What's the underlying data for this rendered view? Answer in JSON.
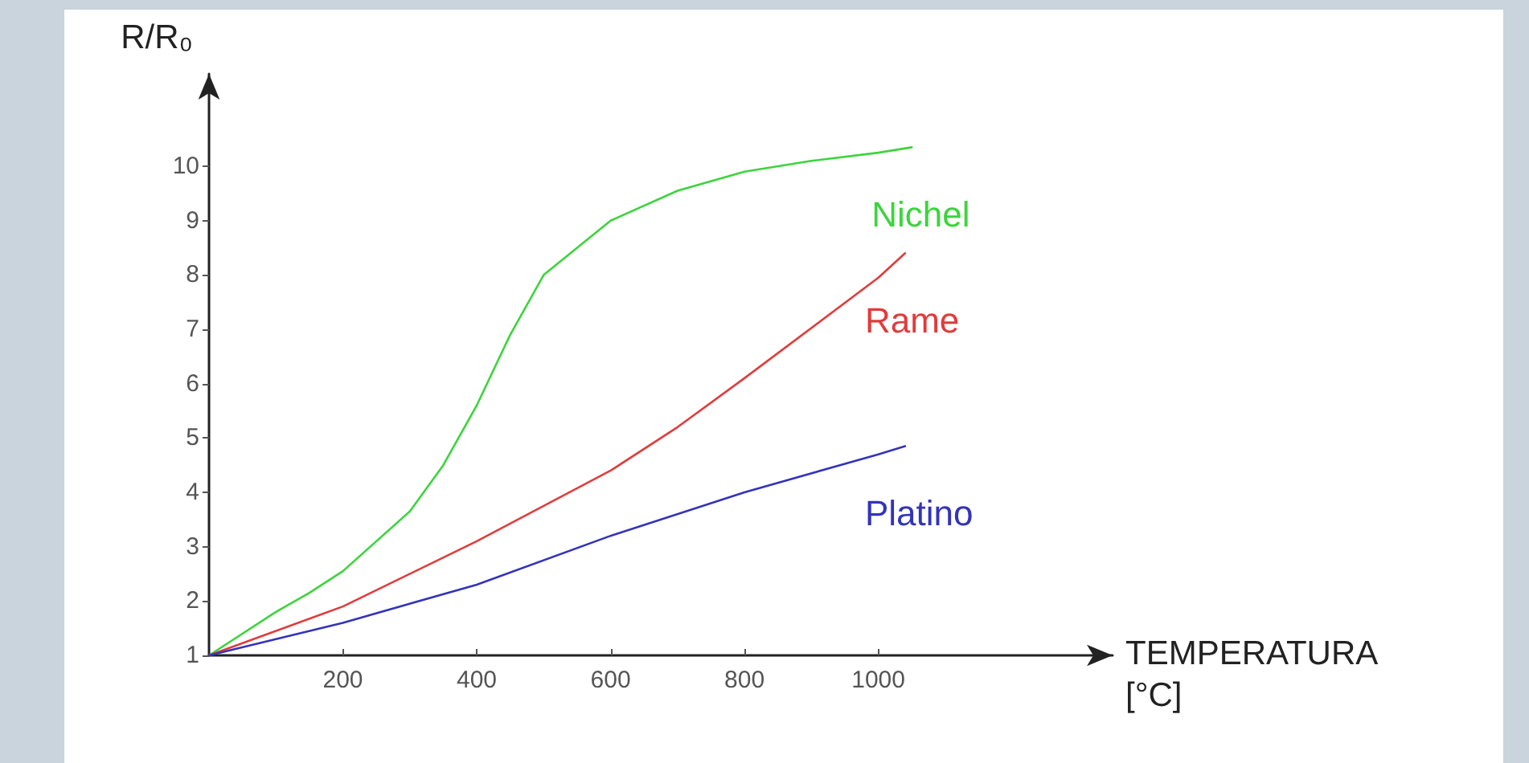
{
  "chart_data": {
    "type": "line",
    "xlabel": "TEMPERATURA\n[°C]",
    "ylabel": "R/R₀",
    "xlim": [
      0,
      1350
    ],
    "ylim": [
      1,
      11.7
    ],
    "xticks": [
      200,
      400,
      600,
      800,
      1000
    ],
    "yticks": [
      1,
      2,
      3,
      4,
      5,
      6,
      7,
      8,
      9,
      10
    ],
    "grid": false,
    "legend": false,
    "marker": "none",
    "line_style": "solid",
    "series": [
      {
        "name": "Nichel",
        "color": "#3dd43d",
        "x": [
          0,
          100,
          150,
          200,
          300,
          350,
          400,
          450,
          500,
          600,
          700,
          800,
          900,
          1000,
          1050
        ],
        "values": [
          1,
          1.8,
          2.15,
          2.55,
          3.65,
          4.5,
          5.6,
          6.9,
          8.0,
          9.0,
          9.55,
          9.9,
          10.1,
          10.25,
          10.35
        ]
      },
      {
        "name": "Rame",
        "color": "#e03c3c",
        "x": [
          0,
          200,
          400,
          600,
          700,
          800,
          1000,
          1040
        ],
        "values": [
          1,
          1.9,
          3.1,
          4.4,
          5.2,
          6.1,
          7.95,
          8.4
        ]
      },
      {
        "name": "Platino",
        "color": "#3333bb",
        "x": [
          0,
          200,
          400,
          600,
          800,
          1000,
          1040
        ],
        "values": [
          1,
          1.6,
          2.3,
          3.2,
          4.0,
          4.7,
          4.85
        ]
      }
    ]
  }
}
